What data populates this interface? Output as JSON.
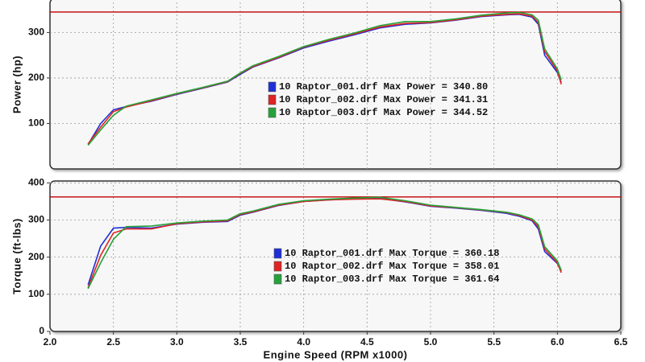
{
  "chart_data": [
    {
      "type": "line",
      "y_label": "Power (hp)",
      "x": [
        2.3,
        2.4,
        2.5,
        2.6,
        2.8,
        3.0,
        3.2,
        3.4,
        3.5,
        3.6,
        3.8,
        4.0,
        4.2,
        4.4,
        4.6,
        4.8,
        5.0,
        5.2,
        5.4,
        5.6,
        5.7,
        5.8,
        5.85,
        5.9,
        6.0,
        6.03
      ],
      "series": [
        {
          "name": "10 Raptor_001.drf Max Power = 340.80",
          "color": "#1f2fd6",
          "values": [
            54,
            100,
            130,
            137,
            149,
            164,
            177,
            191,
            208,
            224,
            244,
            266,
            281,
            295,
            310,
            318,
            321,
            327,
            335,
            339,
            340,
            334,
            318,
            250,
            212,
            190
          ]
        },
        {
          "name": "10 Raptor_002.drf Max Power = 341.31",
          "color": "#e02424",
          "values": [
            55,
            92,
            126,
            136,
            150,
            165,
            178,
            192,
            210,
            225,
            245,
            268,
            283,
            297,
            312,
            320,
            322,
            328,
            336,
            340,
            341,
            336,
            322,
            258,
            216,
            186
          ]
        },
        {
          "name": "10 Raptor_003.drf Max Power = 344.52",
          "color": "#26a23a",
          "values": [
            52,
            86,
            118,
            138,
            152,
            166,
            179,
            193,
            211,
            227,
            247,
            269,
            285,
            299,
            315,
            324,
            324,
            330,
            338,
            343,
            344,
            339,
            327,
            264,
            220,
            196
          ]
        }
      ],
      "xlim": [
        2.0,
        6.5
      ],
      "xticks": [
        2.0,
        2.5,
        3.0,
        3.5,
        4.0,
        4.5,
        5.0,
        5.5,
        6.0,
        6.5
      ],
      "ylim": [
        0,
        375
      ],
      "yticks": [
        100,
        200,
        300
      ],
      "ref_line": 345,
      "ref_color": "#c00000",
      "grid": true,
      "legend": "center"
    },
    {
      "type": "line",
      "y_label": "Torque (ft-lbs)",
      "x_label": "Engine Speed (RPM x1000)",
      "x": [
        2.3,
        2.4,
        2.5,
        2.6,
        2.8,
        3.0,
        3.2,
        3.4,
        3.5,
        3.6,
        3.8,
        4.0,
        4.2,
        4.4,
        4.6,
        4.8,
        5.0,
        5.2,
        5.4,
        5.6,
        5.7,
        5.8,
        5.85,
        5.9,
        6.0,
        6.03
      ],
      "series": [
        {
          "name": "10 Raptor_001.drf Max Torque = 360.18",
          "color": "#1f2fd6",
          "values": [
            125,
            230,
            278,
            280,
            278,
            289,
            294,
            296,
            313,
            321,
            339,
            350,
            354,
            357,
            358,
            349,
            337,
            332,
            326,
            318,
            310,
            298,
            276,
            215,
            183,
            162
          ]
        },
        {
          "name": "10 Raptor_002.drf Max Torque = 358.01",
          "color": "#e02424",
          "values": [
            118,
            205,
            265,
            276,
            276,
            290,
            295,
            298,
            315,
            322,
            340,
            350,
            354,
            356,
            357,
            350,
            338,
            333,
            327,
            320,
            312,
            300,
            282,
            222,
            185,
            158
          ]
        },
        {
          "name": "10 Raptor_003.drf Max Torque = 361.64",
          "color": "#26a23a",
          "values": [
            115,
            185,
            248,
            282,
            284,
            292,
            297,
            300,
            317,
            324,
            342,
            352,
            356,
            359,
            361,
            352,
            340,
            334,
            328,
            321,
            314,
            303,
            287,
            228,
            190,
            165
          ]
        }
      ],
      "xlim": [
        2.0,
        6.5
      ],
      "xticks": [
        {
          "value": 2.0,
          "label": "2.0"
        },
        2.5,
        {
          "value": 3.0,
          "label": "3.0"
        },
        3.5,
        {
          "value": 4.0,
          "label": "4.0"
        },
        4.5,
        {
          "value": 5.0,
          "label": "5.0"
        },
        5.5,
        {
          "value": 6.0,
          "label": "6.0"
        },
        6.5
      ],
      "ylim": [
        0,
        405
      ],
      "yticks": [
        0,
        100,
        200,
        300,
        400
      ],
      "ref_line": 362,
      "ref_color": "#c00000",
      "grid": true,
      "legend": "center"
    }
  ]
}
